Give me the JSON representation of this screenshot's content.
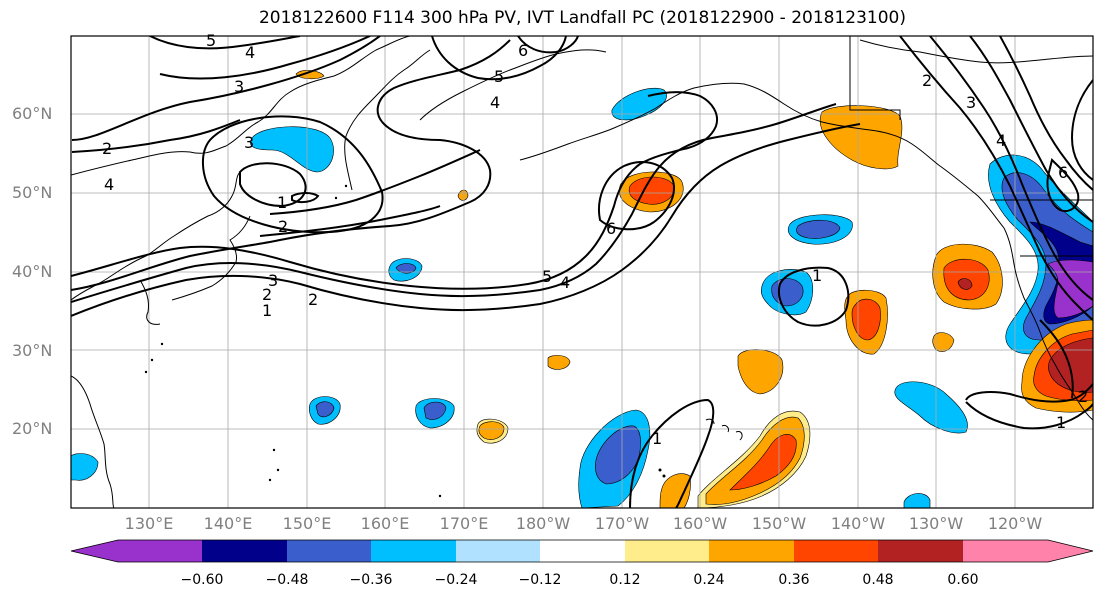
{
  "title": "2018122600 F114 300 hPa PV, IVT Landfall PC (2018122900 - 2018123100)",
  "latitude_labels": [
    "60°N",
    "50°N",
    "40°N",
    "30°N",
    "20°N"
  ],
  "longitude_labels": [
    "130°E",
    "140°E",
    "150°E",
    "160°E",
    "170°E",
    "180°W",
    "170°W",
    "160°W",
    "150°W",
    "140°W",
    "130°W",
    "120°W"
  ],
  "colorbar": {
    "tick_labels": [
      "−0.60",
      "−0.48",
      "−0.36",
      "−0.24",
      "−0.12",
      "0.12",
      "0.24",
      "0.36",
      "0.48",
      "0.60"
    ],
    "colors": [
      "#9932cc",
      "#00008b",
      "#3a5fcd",
      "#00bfff",
      "#b0e2ff",
      "#ffffff",
      "#ffec8b",
      "#ffa500",
      "#ff4500",
      "#b22222",
      "#ff82ab"
    ]
  },
  "pv_contour_labels": [
    "5",
    "4",
    "3",
    "2",
    "3",
    "4",
    "5",
    "6",
    "4",
    "2",
    "1",
    "2",
    "3",
    "2",
    "1",
    "6",
    "5",
    "4",
    "1",
    "1",
    "2",
    "3",
    "4",
    "6",
    "2",
    "1"
  ],
  "colors": {
    "contour": "#000000",
    "coast": "#000000",
    "grid": "#a9a9a9",
    "tick_label": "#808080"
  }
}
